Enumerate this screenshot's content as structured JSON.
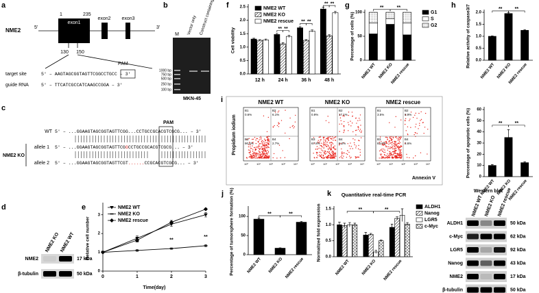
{
  "gene_diagram": {
    "label": "a",
    "gene": "NME2",
    "five": "5'",
    "three": "3'",
    "exons": [
      "exon1",
      "exon2",
      "exon3"
    ],
    "positions": [
      "1",
      "235"
    ],
    "site_positions": [
      "130",
      "150"
    ],
    "pam": "PAM",
    "target_site": {
      "name": "target site",
      "sequence": "5' – AAGTAGCGGTAGTTCGGCCTGCC – 3'"
    },
    "guide_rna": {
      "name": "guide RNA",
      "sequence": "5' – TTCATCGCCATCAAGCCGGA – 3'"
    }
  },
  "gel": {
    "label": "b",
    "lanes": [
      "M",
      "Vector only",
      "Construct containing gRNA"
    ],
    "ladder": [
      "1000 bp",
      "750 bp",
      "500 bp",
      "250 bp",
      "100 bp"
    ],
    "cell_line": "MKN-45"
  },
  "alignment": {
    "label": "c",
    "pam": "PAM",
    "group": "NME2 KO",
    "rows": [
      {
        "name": "WT",
        "parts": [
          "5' – ...GGAAGTAGCGGTAGTTCGG...CCTGCCGCACGTCGCG... – 3'"
        ]
      },
      {
        "name": "allele 1",
        "parts": [
          "5' – ...GGAAGTAGCGGTAGTTCG",
          "G",
          "CCTGCCGCACGTCGCG... – 3'"
        ]
      },
      {
        "name": "allele 2",
        "parts": [
          "5' – ...GGAAGTAGCGGTAGTTCGT",
          "......",
          "CCGCACGTCGCG... – 3'"
        ]
      }
    ]
  },
  "blot_d": {
    "label": "d",
    "lanes": [
      "NME2 KO",
      "NME2 WT"
    ],
    "rows": [
      {
        "name": "NME2",
        "size": "17 kDa"
      },
      {
        "name": "β-tubulin",
        "size": "50 kDa"
      }
    ]
  },
  "flow": {
    "label": "i",
    "y_label": "Propidium iodium",
    "x_label": "Annexin V",
    "axis_ticks": [
      "10⁰",
      "10¹",
      "10²",
      "10³",
      "10⁴"
    ],
    "plots": [
      {
        "title": "NME2 WT",
        "quadrants": [
          "B1",
          "B2",
          "B3",
          "B4"
        ],
        "percentages": [
          "0.6%",
          "6.1%",
          "90.6%",
          "2.7%"
        ]
      },
      {
        "title": "NME2 KO",
        "quadrants": [
          "B1",
          "B2",
          "B3",
          "B4"
        ],
        "percentages": [
          "0.9%",
          "17.1%",
          "67.8%",
          "8.2%"
        ]
      },
      {
        "title": "NME2 rescue",
        "quadrants": [
          "B1",
          "B2",
          "B3",
          "B4"
        ],
        "percentages": [
          "3.5%",
          "8.9%",
          "84.0%",
          "3.6%"
        ]
      }
    ]
  },
  "blot_k": {
    "title": "Western blot",
    "lanes": [
      "NME2 WT",
      "NME2 KO",
      "NME2 rescue"
    ],
    "rows": [
      {
        "name": "ALDH1",
        "size": "50 kDa"
      },
      {
        "name": "c-Myc",
        "size": "62 kDa"
      },
      {
        "name": "LGR5",
        "size": "92 kDa"
      },
      {
        "name": "Nanog",
        "size": "43 kDa"
      },
      {
        "name": "NME2",
        "size": "17 kDa"
      },
      {
        "name": "β-tubulin",
        "size": "50 kDa"
      }
    ]
  },
  "chart_data": [
    {
      "type": "bar",
      "label": "f",
      "y_label": "Cell viability",
      "categories": [
        "12 h",
        "24 h",
        "36 h",
        "48 h"
      ],
      "series": [
        {
          "name": "NME2 WT",
          "color": "#000000",
          "values": [
            1.3,
            1.47,
            1.72,
            2.42
          ],
          "errors": [
            0.03,
            0.04,
            0.04,
            0.07
          ]
        },
        {
          "name": "NME2 KO",
          "color": "#ffffff",
          "pattern": "diagonal",
          "values": [
            1.25,
            1.12,
            1.25,
            1.42
          ],
          "errors": [
            0.03,
            0.04,
            0.03,
            0.04
          ]
        },
        {
          "name": "NME2 rescue",
          "color": "#ffffff",
          "values": [
            1.27,
            1.4,
            1.6,
            2.28
          ],
          "errors": [
            0.03,
            0.04,
            0.04,
            0.05
          ]
        }
      ],
      "ylim": [
        0,
        2.5
      ],
      "yticks": [
        {
          "value": 0,
          "label": "0.0"
        },
        0.5,
        {
          "value": 1,
          "label": "1.0"
        },
        1.5,
        {
          "value": 2,
          "label": "2.0"
        },
        2.5
      ],
      "legend": "top-left",
      "annotations": [
        "**",
        "**",
        "**",
        "**",
        "**",
        "**"
      ]
    },
    {
      "type": "stacked_bar",
      "label": "g",
      "y_label": "Percentage of cells (%)",
      "categories": [
        "NME2 WT",
        "NME2 KO",
        "NME2 rescue"
      ],
      "series": [
        {
          "name": "G1",
          "color": "#000000",
          "values": [
            55,
            75,
            53
          ]
        },
        {
          "name": "S",
          "color": "#ffffff",
          "values": [
            23,
            12,
            25
          ]
        },
        {
          "name": "G2",
          "color": "#ffffff",
          "pattern": "dots",
          "values": [
            22,
            13,
            22
          ]
        }
      ],
      "ylim": [
        0,
        100
      ],
      "yticks": [
        0,
        50,
        100
      ],
      "legend": "right",
      "annotations": [
        "**",
        "**"
      ]
    },
    {
      "type": "bar",
      "label": "h",
      "y_label": "Relative activity of caspase3/7",
      "categories": [
        "NME2 WT",
        "NME2 KO",
        "NME2 rescue"
      ],
      "series": [
        {
          "color": "#000000",
          "values": [
            1.0,
            1.95,
            1.25
          ],
          "errors": [
            0.02,
            0.03,
            0.03
          ]
        }
      ],
      "ylim": [
        0,
        2.0
      ],
      "yticks": [
        {
          "value": 0,
          "label": "0.0"
        },
        0.5,
        {
          "value": 1,
          "label": "1.0"
        },
        1.5,
        {
          "value": 2,
          "label": "2.0"
        }
      ],
      "annotations": [
        "**",
        "**"
      ]
    },
    {
      "type": "bar",
      "y_label": "Percentage of apoptotic cells (%)",
      "categories": [
        "NME2 WT",
        "NME2 KO",
        "NME2 rescue"
      ],
      "series": [
        {
          "color": "#000000",
          "values": [
            10,
            35,
            12.5
          ],
          "errors": [
            0.8,
            7,
            0.8
          ]
        }
      ],
      "ylim": [
        0,
        60
      ],
      "yticks": [
        0,
        10,
        20,
        30,
        40,
        50,
        60
      ],
      "annotations": [
        "**",
        "**"
      ]
    },
    {
      "type": "line",
      "label": "e",
      "y_label": "Relative cell number",
      "x_label": "Time(day)",
      "x": [
        0,
        1,
        2,
        3
      ],
      "series": [
        {
          "name": "NME2 WT",
          "color": "#000000",
          "marker": "triangle",
          "values": [
            1,
            1.75,
            2.5,
            3.0
          ],
          "errors": [
            0.03,
            0.12,
            0.12,
            0.12
          ]
        },
        {
          "name": "NME2 KO",
          "color": "#000000",
          "marker": "dash",
          "values": [
            1,
            1.1,
            1.2,
            1.35
          ],
          "errors": [
            0.03,
            0.05,
            0.04,
            0.06
          ]
        },
        {
          "name": "NME2 rescue",
          "color": "#000000",
          "marker": "diamond",
          "values": [
            1,
            1.65,
            2.6,
            3.3
          ],
          "errors": [
            0.03,
            0.1,
            0.1,
            0.05
          ]
        }
      ],
      "xlim": [
        0,
        3
      ],
      "xticks": [
        0,
        1,
        2,
        3
      ],
      "ylim": [
        0,
        3.5
      ],
      "yticks": [
        0,
        1,
        2,
        3
      ],
      "legend": "top-left",
      "annotations": [
        "**",
        "**",
        "**"
      ]
    },
    {
      "type": "bar",
      "label": "j",
      "y_label": "Percentage of tumorsphere formation (%)",
      "categories": [
        "NME2 WT",
        "NME2 KO",
        "NME2 rescue"
      ],
      "series": [
        {
          "color": "#000000",
          "values": [
            93,
            17,
            85
          ],
          "errors": [
            3,
            1,
            2
          ]
        }
      ],
      "ylim": [
        0,
        120
      ],
      "yticks": [
        0,
        50,
        100
      ],
      "annotations": [
        "**",
        "**"
      ]
    },
    {
      "type": "bar",
      "label": "k",
      "title": "Quantitative real-time PCR",
      "y_label": "Normalized fold expression",
      "categories": [
        "NME2 WT",
        "NME2 KO",
        "NME2 rescue"
      ],
      "series": [
        {
          "name": "ALDH1",
          "color": "#000000",
          "values": [
            1.0,
            0.68,
            0.92
          ],
          "errors": [
            0.08,
            0.08,
            0.1
          ]
        },
        {
          "name": "Nanog",
          "color": "#ffffff",
          "pattern": "diagonal",
          "values": [
            0.98,
            0.7,
            1.2
          ],
          "errors": [
            0.07,
            0.03,
            0.05
          ]
        },
        {
          "name": "LGR5",
          "color": "#ffffff",
          "values": [
            1.0,
            0.15,
            1.3
          ],
          "errors": [
            0.07,
            0.05,
            0.2
          ]
        },
        {
          "name": "c-Myc",
          "color": "#ffffff",
          "pattern": "crosshatch",
          "values": [
            1.0,
            0.5,
            1.02
          ],
          "errors": [
            0.05,
            0.02,
            0.05
          ]
        }
      ],
      "ylim": [
        0,
        1.5
      ],
      "yticks": [
        {
          "value": 0,
          "label": "0.0"
        },
        0.5,
        {
          "value": 1,
          "label": "1.0"
        },
        1.5
      ],
      "legend": "right",
      "annotations": [
        "**",
        "**"
      ]
    }
  ]
}
